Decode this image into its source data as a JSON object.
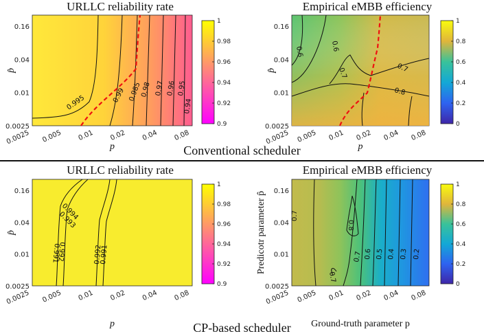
{
  "captions": {
    "top": "Conventional scheduler",
    "bottom": "CP-based scheduler"
  },
  "chart_data": [
    {
      "type": "heatmap",
      "panel": "conventional-urllc",
      "title": "URLLC reliability rate",
      "xlabel": "p",
      "ylabel": "p̂",
      "x_ticks": [
        "0.0025",
        "0.005",
        "0.01",
        "0.02",
        "0.04",
        "0.08"
      ],
      "y_ticks": [
        "0.0025",
        "0.01",
        "0.04",
        "0.16"
      ],
      "colorbar": {
        "min": 0.9,
        "max": 1,
        "ticks": [
          "0.9",
          "0.92",
          "0.94",
          "0.96",
          "0.98",
          "1"
        ],
        "colormap": "spring"
      },
      "contour_labels": [
        "0.995",
        "0.99",
        "0.985",
        "0.98",
        "0.97",
        "0.96",
        "0.95",
        "0.94"
      ],
      "dashed_boundary": true
    },
    {
      "type": "heatmap",
      "panel": "conventional-embb",
      "title": "Empirical eMBB efficiency",
      "xlabel": "p",
      "ylabel": "p̂",
      "x_ticks": [
        "0.0025",
        "0.005",
        "0.01",
        "0.02",
        "0.04",
        "0.08"
      ],
      "y_ticks": [
        "0.0025",
        "0.01",
        "0.04",
        "0.16"
      ],
      "colorbar": {
        "min": 0,
        "max": 1,
        "ticks": [
          "0",
          "0.2",
          "0.4",
          "0.6",
          "0.8",
          "1"
        ],
        "colormap": "parula"
      },
      "contour_labels": [
        "0.6",
        "0.6",
        "0.7",
        "0.7",
        "0.8"
      ],
      "dashed_boundary": true
    },
    {
      "type": "heatmap",
      "panel": "cp-urllc",
      "title": "URLLC reliability rate",
      "xlabel": "p",
      "ylabel": "p̂",
      "x_ticks": [
        "0.0025",
        "0.005",
        "0.01",
        "0.02",
        "0.04",
        "0.08"
      ],
      "y_ticks": [
        "0.0025",
        "0.01",
        "0.04",
        "0.16"
      ],
      "colorbar": {
        "min": 0.9,
        "max": 1,
        "ticks": [
          "0.9",
          "0.92",
          "0.94",
          "0.96",
          "0.98",
          "1"
        ],
        "colormap": "spring"
      },
      "contour_labels": [
        "0.994",
        "0.993",
        "0.992",
        "0.991",
        "0.992",
        "0.991"
      ],
      "dashed_boundary": false
    },
    {
      "type": "heatmap",
      "panel": "cp-embb",
      "title": "Empirical eMBB efficiency",
      "xlabel": "Ground-truth parameter p",
      "ylabel": "Predicotr parameter p̂",
      "x_ticks": [
        "0.0025",
        "0.005",
        "0.01",
        "0.02",
        "0.04",
        "0.08"
      ],
      "y_ticks": [
        "0.0025",
        "0.01",
        "0.04",
        "0.16"
      ],
      "colorbar": {
        "min": 0,
        "max": 1,
        "ticks": [
          "0",
          "0.2",
          "0.4",
          "0.6",
          "0.8",
          "1"
        ],
        "colormap": "parula"
      },
      "contour_labels": [
        "0.7",
        "0.8",
        "0.7",
        "0.7",
        "0.6",
        "0.5",
        "0.4",
        "0.3",
        "0.2"
      ],
      "dashed_boundary": false
    }
  ]
}
